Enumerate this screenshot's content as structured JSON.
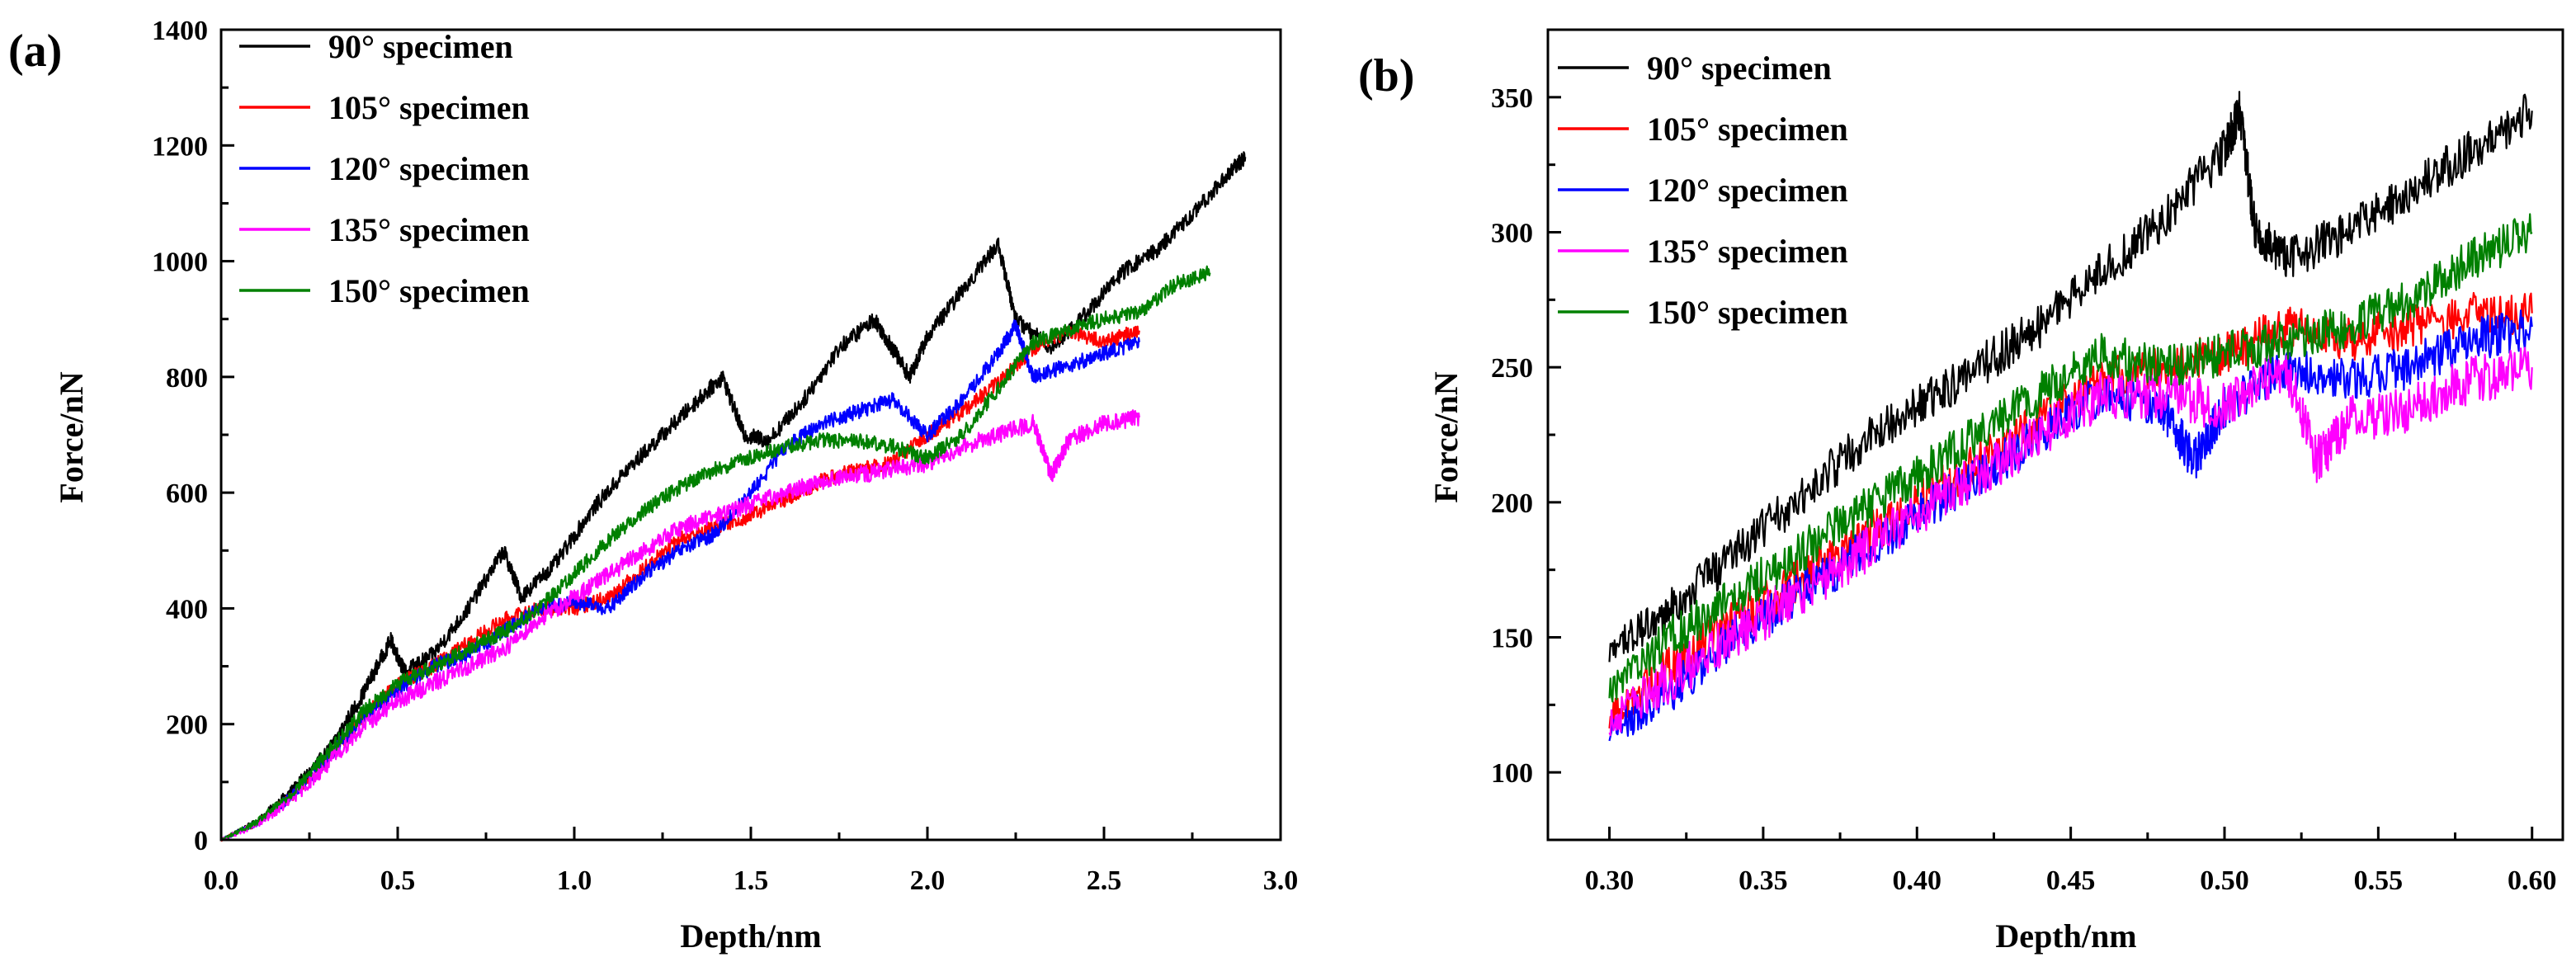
{
  "chart_data": [
    {
      "panel_label": "(a)",
      "type": "line",
      "xlabel": "Depth/nm",
      "ylabel": "Force/nN",
      "xlim": [
        0.0,
        3.0
      ],
      "ylim": [
        0,
        1400
      ],
      "xticks": [
        0.0,
        0.5,
        1.0,
        1.5,
        2.0,
        2.5,
        3.0
      ],
      "xtick_labels": [
        "0.0",
        "0.5",
        "1.0",
        "1.5",
        "2.0",
        "2.5",
        "3.0"
      ],
      "yticks": [
        0,
        200,
        400,
        600,
        800,
        1000,
        1200,
        1400
      ],
      "ytick_labels": [
        "0",
        "200",
        "400",
        "600",
        "800",
        "1000",
        "1200",
        "1400"
      ],
      "legend_position": "top-left",
      "series": [
        {
          "name": "90° specimen",
          "color": "#000000",
          "noise": 14,
          "x": [
            0,
            0.1,
            0.2,
            0.3,
            0.4,
            0.48,
            0.52,
            0.6,
            0.7,
            0.8,
            0.85,
            0.95,
            1.05,
            1.15,
            1.25,
            1.35,
            1.42,
            1.48,
            1.55,
            1.65,
            1.75,
            1.85,
            1.9,
            1.95,
            2.0,
            2.1,
            2.2,
            2.25,
            2.35,
            2.45,
            2.55,
            2.65,
            2.75,
            2.85,
            2.9
          ],
          "values": [
            0,
            30,
            85,
            150,
            250,
            345,
            290,
            320,
            400,
            500,
            420,
            480,
            570,
            640,
            700,
            760,
            800,
            700,
            690,
            760,
            850,
            900,
            850,
            800,
            870,
            950,
            1030,
            900,
            850,
            910,
            980,
            1020,
            1080,
            1150,
            1180
          ]
        },
        {
          "name": "105° specimen",
          "color": "#ff0000",
          "noise": 13,
          "x": [
            0,
            0.1,
            0.2,
            0.3,
            0.4,
            0.5,
            0.6,
            0.7,
            0.8,
            0.9,
            1.0,
            1.1,
            1.2,
            1.3,
            1.4,
            1.5,
            1.6,
            1.7,
            1.8,
            1.9,
            2.0,
            2.1,
            2.2,
            2.3,
            2.4,
            2.5,
            2.6
          ],
          "values": [
            0,
            28,
            75,
            140,
            210,
            270,
            300,
            340,
            380,
            400,
            400,
            420,
            470,
            520,
            540,
            560,
            590,
            620,
            640,
            650,
            700,
            740,
            790,
            850,
            880,
            860,
            880
          ]
        },
        {
          "name": "120° specimen",
          "color": "#0000ff",
          "noise": 13,
          "x": [
            0,
            0.1,
            0.2,
            0.3,
            0.4,
            0.5,
            0.6,
            0.7,
            0.8,
            0.9,
            1.0,
            1.1,
            1.2,
            1.3,
            1.4,
            1.5,
            1.6,
            1.7,
            1.8,
            1.9,
            2.0,
            2.1,
            2.2,
            2.25,
            2.3,
            2.4,
            2.5,
            2.6
          ],
          "values": [
            0,
            28,
            75,
            140,
            210,
            260,
            300,
            320,
            360,
            400,
            410,
            400,
            460,
            500,
            530,
            600,
            680,
            720,
            740,
            760,
            700,
            760,
            840,
            890,
            800,
            820,
            840,
            860
          ]
        },
        {
          "name": "135° specimen",
          "color": "#ff00ff",
          "noise": 15,
          "x": [
            0,
            0.1,
            0.2,
            0.3,
            0.4,
            0.5,
            0.6,
            0.7,
            0.8,
            0.9,
            1.0,
            1.1,
            1.2,
            1.3,
            1.4,
            1.5,
            1.6,
            1.7,
            1.8,
            1.9,
            2.0,
            2.1,
            2.2,
            2.3,
            2.35,
            2.4,
            2.5,
            2.6
          ],
          "values": [
            0,
            26,
            70,
            130,
            195,
            240,
            270,
            300,
            330,
            380,
            420,
            460,
            500,
            540,
            560,
            580,
            600,
            620,
            630,
            640,
            650,
            680,
            700,
            720,
            630,
            690,
            720,
            730
          ]
        },
        {
          "name": "150° specimen",
          "color": "#008000",
          "noise": 13,
          "x": [
            0,
            0.1,
            0.2,
            0.3,
            0.4,
            0.5,
            0.6,
            0.7,
            0.8,
            0.9,
            1.0,
            1.1,
            1.2,
            1.3,
            1.4,
            1.5,
            1.6,
            1.7,
            1.8,
            1.9,
            2.0,
            2.1,
            2.2,
            2.3,
            2.4,
            2.5,
            2.6,
            2.7,
            2.8
          ],
          "values": [
            0,
            30,
            80,
            150,
            220,
            270,
            300,
            330,
            360,
            400,
            460,
            520,
            570,
            610,
            640,
            660,
            680,
            690,
            690,
            680,
            660,
            700,
            780,
            860,
            880,
            900,
            910,
            960,
            980
          ]
        }
      ]
    },
    {
      "panel_label": "(b)",
      "type": "line",
      "xlabel": "Depth/nm",
      "ylabel": "Force/nN",
      "xlim": [
        0.28,
        0.61
      ],
      "ylim": [
        75,
        375
      ],
      "xticks": [
        0.3,
        0.35,
        0.4,
        0.45,
        0.5,
        0.55,
        0.6
      ],
      "xtick_labels": [
        "0.30",
        "0.35",
        "0.40",
        "0.45",
        "0.50",
        "0.55",
        "0.60"
      ],
      "yticks": [
        100,
        150,
        200,
        250,
        300,
        350
      ],
      "ytick_labels": [
        "100",
        "150",
        "200",
        "250",
        "300",
        "350"
      ],
      "legend_position": "top-left",
      "series": [
        {
          "name": "90° specimen",
          "color": "#000000",
          "noise": 8,
          "x": [
            0.3,
            0.32,
            0.34,
            0.36,
            0.38,
            0.4,
            0.42,
            0.44,
            0.46,
            0.48,
            0.5,
            0.505,
            0.51,
            0.52,
            0.54,
            0.56,
            0.58,
            0.6
          ],
          "values": [
            145,
            160,
            180,
            200,
            220,
            235,
            250,
            265,
            285,
            305,
            330,
            345,
            300,
            290,
            300,
            315,
            330,
            345
          ]
        },
        {
          "name": "105° specimen",
          "color": "#ff0000",
          "noise": 8,
          "x": [
            0.3,
            0.32,
            0.34,
            0.36,
            0.38,
            0.4,
            0.42,
            0.44,
            0.46,
            0.48,
            0.5,
            0.52,
            0.54,
            0.56,
            0.58,
            0.6
          ],
          "values": [
            120,
            140,
            155,
            170,
            185,
            200,
            215,
            230,
            245,
            250,
            255,
            265,
            260,
            265,
            270,
            270
          ]
        },
        {
          "name": "120° specimen",
          "color": "#0000ff",
          "noise": 8,
          "x": [
            0.3,
            0.32,
            0.34,
            0.36,
            0.38,
            0.4,
            0.42,
            0.44,
            0.46,
            0.48,
            0.49,
            0.5,
            0.52,
            0.54,
            0.56,
            0.58,
            0.6
          ],
          "values": [
            115,
            130,
            150,
            165,
            180,
            195,
            210,
            225,
            240,
            235,
            215,
            235,
            250,
            245,
            250,
            260,
            265
          ]
        },
        {
          "name": "135° specimen",
          "color": "#ff00ff",
          "noise": 9,
          "x": [
            0.3,
            0.32,
            0.34,
            0.36,
            0.38,
            0.4,
            0.42,
            0.44,
            0.46,
            0.48,
            0.5,
            0.52,
            0.53,
            0.54,
            0.56,
            0.58,
            0.6
          ],
          "values": [
            118,
            135,
            150,
            165,
            180,
            195,
            210,
            225,
            240,
            240,
            235,
            250,
            215,
            230,
            235,
            245,
            250
          ]
        },
        {
          "name": "150° specimen",
          "color": "#008000",
          "noise": 8,
          "x": [
            0.3,
            0.32,
            0.34,
            0.36,
            0.38,
            0.4,
            0.42,
            0.44,
            0.46,
            0.48,
            0.5,
            0.52,
            0.54,
            0.56,
            0.58,
            0.6
          ],
          "values": [
            130,
            150,
            165,
            180,
            195,
            210,
            225,
            240,
            255,
            250,
            255,
            260,
            265,
            275,
            290,
            300
          ]
        }
      ]
    }
  ]
}
